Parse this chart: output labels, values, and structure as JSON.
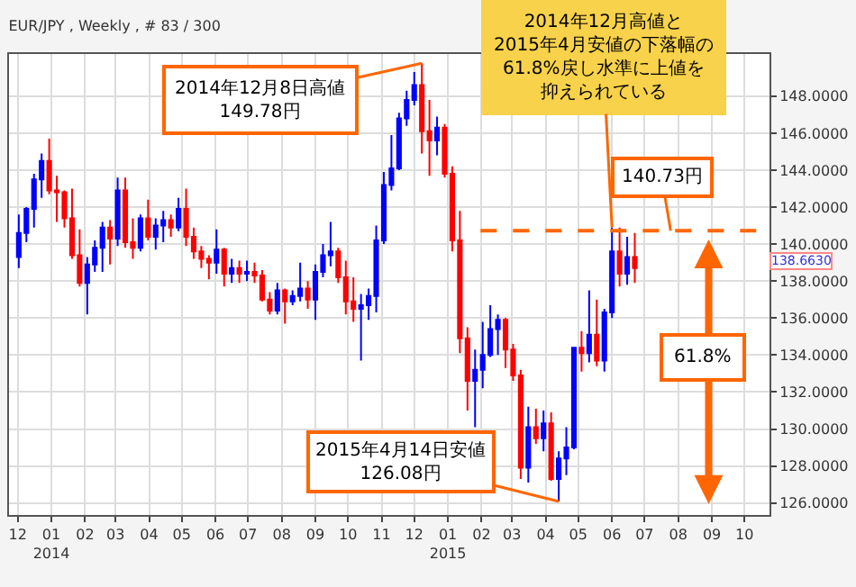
{
  "chart_data": {
    "type": "candlestick",
    "title": "EUR/JPY , Weekly , # 83 / 300",
    "x": [
      "2013-12-02",
      "2013-12-09",
      "2013-12-16",
      "2013-12-23",
      "2013-12-30",
      "2014-01-06",
      "2014-01-13",
      "2014-01-20",
      "2014-01-27",
      "2014-02-03",
      "2014-02-10",
      "2014-02-17",
      "2014-02-24",
      "2014-03-03",
      "2014-03-10",
      "2014-03-17",
      "2014-03-24",
      "2014-03-31",
      "2014-04-07",
      "2014-04-14",
      "2014-04-21",
      "2014-04-28",
      "2014-05-05",
      "2014-05-12",
      "2014-05-19",
      "2014-05-26",
      "2014-06-02",
      "2014-06-09",
      "2014-06-16",
      "2014-06-23",
      "2014-06-30",
      "2014-07-07",
      "2014-07-14",
      "2014-07-21",
      "2014-07-28",
      "2014-08-04",
      "2014-08-11",
      "2014-08-18",
      "2014-08-25",
      "2014-09-01",
      "2014-09-08",
      "2014-09-15",
      "2014-09-22",
      "2014-09-29",
      "2014-10-06",
      "2014-10-13",
      "2014-10-20",
      "2014-10-27",
      "2014-11-03",
      "2014-11-10",
      "2014-11-17",
      "2014-11-24",
      "2014-12-01",
      "2014-12-08",
      "2014-12-15",
      "2014-12-22",
      "2014-12-29",
      "2015-01-05",
      "2015-01-12",
      "2015-01-19",
      "2015-01-26",
      "2015-02-02",
      "2015-02-09",
      "2015-02-16",
      "2015-02-23",
      "2015-03-02",
      "2015-03-09",
      "2015-03-16",
      "2015-03-23",
      "2015-03-30",
      "2015-04-06",
      "2015-04-13",
      "2015-04-20",
      "2015-04-27",
      "2015-05-04",
      "2015-05-11",
      "2015-05-18",
      "2015-05-25",
      "2015-06-01",
      "2015-06-08",
      "2015-06-15",
      "2015-06-22"
    ],
    "ohlc": [
      [
        139.3,
        141.6,
        138.7,
        140.6
      ],
      [
        140.6,
        142.0,
        140.1,
        141.9
      ],
      [
        141.9,
        143.8,
        140.9,
        143.5
      ],
      [
        143.5,
        144.9,
        142.5,
        144.5
      ],
      [
        144.5,
        145.7,
        142.7,
        142.9
      ],
      [
        142.9,
        143.7,
        141.2,
        142.8
      ],
      [
        142.8,
        142.9,
        140.9,
        141.4
      ],
      [
        141.4,
        143.0,
        139.2,
        139.4
      ],
      [
        139.4,
        140.8,
        137.7,
        137.9
      ],
      [
        137.9,
        139.3,
        136.2,
        138.9
      ],
      [
        138.9,
        140.2,
        138.5,
        139.8
      ],
      [
        139.8,
        141.2,
        138.5,
        140.9
      ],
      [
        140.9,
        141.3,
        138.9,
        140.3
      ],
      [
        140.3,
        143.6,
        139.9,
        142.9
      ],
      [
        142.9,
        143.6,
        139.8,
        140.1
      ],
      [
        140.1,
        141.4,
        139.2,
        139.8
      ],
      [
        139.8,
        141.6,
        139.6,
        141.4
      ],
      [
        141.4,
        142.4,
        140.2,
        140.4
      ],
      [
        140.4,
        141.4,
        139.7,
        141.0
      ],
      [
        141.0,
        141.8,
        140.1,
        141.3
      ],
      [
        141.3,
        141.6,
        140.4,
        140.9
      ],
      [
        140.9,
        142.5,
        140.7,
        141.9
      ],
      [
        141.9,
        143.0,
        139.9,
        140.4
      ],
      [
        140.4,
        140.9,
        139.2,
        139.6
      ],
      [
        139.6,
        139.9,
        138.7,
        139.2
      ],
      [
        139.2,
        139.4,
        138.1,
        139.0
      ],
      [
        139.0,
        140.8,
        138.4,
        139.7
      ],
      [
        139.7,
        139.8,
        137.7,
        138.4
      ],
      [
        138.4,
        139.2,
        137.9,
        138.7
      ],
      [
        138.7,
        139.1,
        137.9,
        138.4
      ],
      [
        138.4,
        139.1,
        138.0,
        138.5
      ],
      [
        138.5,
        139.0,
        137.9,
        138.3
      ],
      [
        138.3,
        138.6,
        136.9,
        137.0
      ],
      [
        137.0,
        137.4,
        136.2,
        136.4
      ],
      [
        136.4,
        137.9,
        136.2,
        137.5
      ],
      [
        137.5,
        137.6,
        135.7,
        136.9
      ],
      [
        136.9,
        137.5,
        136.7,
        137.2
      ],
      [
        137.2,
        139.0,
        136.9,
        137.6
      ],
      [
        137.6,
        138.0,
        136.5,
        137.0
      ],
      [
        137.0,
        138.9,
        135.9,
        138.5
      ],
      [
        138.5,
        140.0,
        138.2,
        139.4
      ],
      [
        139.4,
        141.2,
        138.8,
        139.6
      ],
      [
        139.6,
        139.8,
        137.9,
        138.2
      ],
      [
        138.2,
        139.1,
        136.2,
        136.9
      ],
      [
        136.9,
        138.2,
        135.8,
        136.5
      ],
      [
        136.5,
        137.3,
        133.7,
        136.7
      ],
      [
        136.7,
        137.6,
        135.9,
        137.2
      ],
      [
        137.2,
        141.0,
        136.3,
        140.2
      ],
      [
        140.2,
        143.9,
        140.0,
        143.2
      ],
      [
        143.2,
        145.9,
        142.9,
        144.1
      ],
      [
        144.1,
        147.1,
        144.0,
        146.8
      ],
      [
        146.8,
        148.3,
        146.4,
        147.8
      ],
      [
        147.8,
        149.3,
        147.5,
        148.6
      ],
      [
        148.6,
        149.78,
        144.9,
        146.1
      ],
      [
        146.1,
        147.8,
        143.7,
        145.6
      ],
      [
        145.6,
        146.9,
        144.8,
        146.3
      ],
      [
        146.3,
        146.5,
        143.6,
        143.8
      ],
      [
        143.8,
        144.2,
        139.6,
        140.2
      ],
      [
        140.2,
        141.8,
        134.1,
        134.9
      ],
      [
        134.9,
        135.5,
        131.0,
        132.6
      ],
      [
        132.6,
        134.3,
        130.1,
        133.2
      ],
      [
        133.2,
        135.8,
        132.2,
        134.0
      ],
      [
        134.0,
        136.7,
        133.9,
        135.4
      ],
      [
        135.4,
        136.2,
        134.0,
        135.9
      ],
      [
        135.9,
        136.0,
        133.3,
        134.3
      ],
      [
        134.3,
        134.6,
        132.6,
        132.9
      ],
      [
        132.9,
        133.2,
        127.3,
        127.9
      ],
      [
        127.9,
        131.2,
        127.1,
        130.1
      ],
      [
        130.1,
        131.1,
        129.2,
        129.5
      ],
      [
        129.5,
        131.0,
        128.8,
        130.3
      ],
      [
        130.3,
        130.9,
        127.2,
        127.3
      ],
      [
        127.3,
        128.8,
        126.08,
        128.4
      ],
      [
        128.4,
        130.1,
        127.5,
        129.0
      ],
      [
        129.0,
        134.4,
        128.9,
        134.4
      ],
      [
        134.4,
        135.3,
        133.1,
        134.1
      ],
      [
        134.1,
        137.5,
        133.6,
        135.1
      ],
      [
        135.1,
        137.0,
        133.4,
        133.7
      ],
      [
        133.7,
        136.5,
        133.1,
        136.3
      ],
      [
        136.3,
        140.9,
        136.0,
        139.6
      ],
      [
        139.6,
        140.9,
        137.7,
        138.4
      ],
      [
        138.4,
        140.4,
        137.8,
        139.3
      ],
      [
        139.3,
        140.6,
        137.9,
        138.7
      ]
    ],
    "colors": [
      "#0000ff",
      "#0000ff",
      "#0000ff",
      "#0000ff",
      "#ff0000",
      "#ff0000",
      "#ff0000",
      "#ff0000",
      "#ff0000",
      "#0000ff",
      "#0000ff",
      "#0000ff",
      "#ff0000",
      "#0000ff",
      "#ff0000",
      "#ff0000",
      "#0000ff",
      "#ff0000",
      "#0000ff",
      "#0000ff",
      "#ff0000",
      "#0000ff",
      "#ff0000",
      "#ff0000",
      "#ff0000",
      "#ff0000",
      "#0000ff",
      "#ff0000",
      "#0000ff",
      "#ff0000",
      "#0000ff",
      "#ff0000",
      "#ff0000",
      "#ff0000",
      "#0000ff",
      "#ff0000",
      "#0000ff",
      "#0000ff",
      "#ff0000",
      "#0000ff",
      "#0000ff",
      "#0000ff",
      "#ff0000",
      "#ff0000",
      "#ff0000",
      "#0000ff",
      "#0000ff",
      "#0000ff",
      "#0000ff",
      "#0000ff",
      "#0000ff",
      "#0000ff",
      "#0000ff",
      "#ff0000",
      "#ff0000",
      "#0000ff",
      "#ff0000",
      "#ff0000",
      "#ff0000",
      "#ff0000",
      "#0000ff",
      "#0000ff",
      "#0000ff",
      "#0000ff",
      "#ff0000",
      "#ff0000",
      "#ff0000",
      "#0000ff",
      "#ff0000",
      "#0000ff",
      "#ff0000",
      "#0000ff",
      "#0000ff",
      "#0000ff",
      "#ff0000",
      "#0000ff",
      "#ff0000",
      "#0000ff",
      "#0000ff",
      "#ff0000",
      "#0000ff",
      "#ff0000"
    ],
    "xlim": [
      "2013-11-23",
      "2015-10-24"
    ],
    "xticks": [
      {
        "value": "2013-12-01",
        "label": "12"
      },
      {
        "value": "2014-01-01",
        "label": "01\n2014"
      },
      {
        "value": "2014-02-01",
        "label": "02"
      },
      {
        "value": "2014-03-01",
        "label": "03"
      },
      {
        "value": "2014-04-01",
        "label": "04"
      },
      {
        "value": "2014-05-01",
        "label": "05"
      },
      {
        "value": "2014-06-01",
        "label": "06"
      },
      {
        "value": "2014-07-01",
        "label": "07"
      },
      {
        "value": "2014-08-01",
        "label": "08"
      },
      {
        "value": "2014-09-01",
        "label": "09"
      },
      {
        "value": "2014-10-01",
        "label": "10"
      },
      {
        "value": "2014-11-01",
        "label": "11"
      },
      {
        "value": "2014-12-01",
        "label": "12"
      },
      {
        "value": "2015-01-01",
        "label": "01\n2015"
      },
      {
        "value": "2015-02-01",
        "label": "02"
      },
      {
        "value": "2015-03-01",
        "label": "03"
      },
      {
        "value": "2015-04-01",
        "label": "04"
      },
      {
        "value": "2015-05-01",
        "label": "05"
      },
      {
        "value": "2015-06-01",
        "label": "06"
      },
      {
        "value": "2015-07-01",
        "label": "07"
      },
      {
        "value": "2015-08-01",
        "label": "08"
      },
      {
        "value": "2015-09-01",
        "label": "09"
      },
      {
        "value": "2015-10-01",
        "label": "10"
      }
    ],
    "ylim": [
      125.35,
      150.28
    ],
    "yticks": [
      {
        "value": 126,
        "label": "126.0000"
      },
      {
        "value": 128,
        "label": "128.0000"
      },
      {
        "value": 130,
        "label": "130.0000"
      },
      {
        "value": 132,
        "label": "132.0000"
      },
      {
        "value": 134,
        "label": "134.0000"
      },
      {
        "value": 136,
        "label": "136.0000"
      },
      {
        "value": 138,
        "label": "138.0000"
      },
      {
        "value": 140,
        "label": "140.0000"
      },
      {
        "value": 142,
        "label": "142.0000"
      },
      {
        "value": 144,
        "label": "144.0000"
      },
      {
        "value": 146,
        "label": "146.0000"
      },
      {
        "value": 148,
        "label": "148.0000"
      }
    ],
    "grid": true,
    "ref_lines": [
      {
        "axis": "y",
        "value": 140.73,
        "label": "140.73円",
        "color": "#ff6600",
        "line_style": "dashed"
      }
    ],
    "annotations": [
      {
        "text": "2014年12月8日高値\n149.78円",
        "x": "2014-12-08",
        "y": 149.78
      },
      {
        "text": "2015年4月14日安値\n126.08円",
        "x": "2015-04-13",
        "y": 126.08
      },
      {
        "text": "2014年12月高値と2015年4月安値の下落幅の61.8%戻し水準に上値を抑えられている",
        "x": "2015-06-01",
        "y": 140.9
      },
      "61.8%",
      "138.6630"
    ]
  }
}
